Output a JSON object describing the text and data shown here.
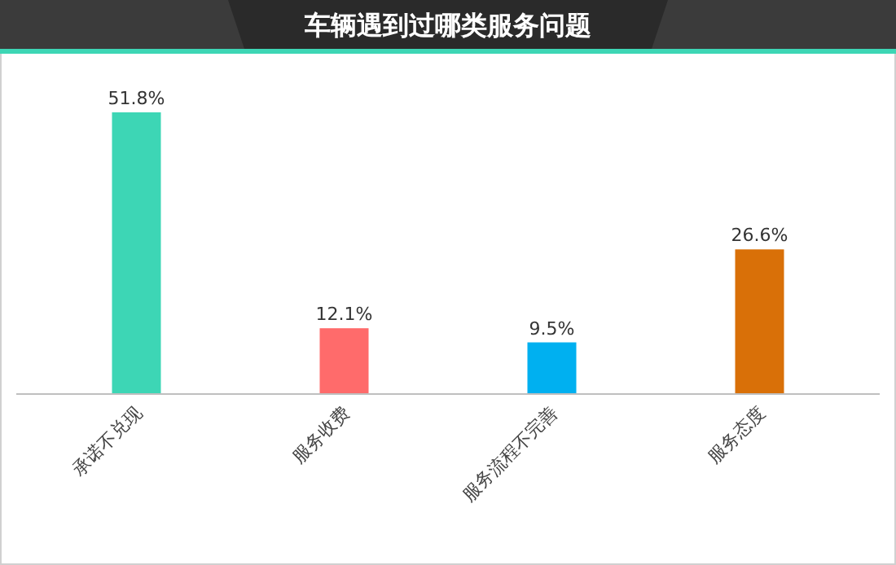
{
  "chart_data": {
    "type": "bar",
    "title": "车辆遇到过哪类服务问题",
    "categories": [
      "承诺不兑现",
      "服务收费",
      "服务流程不完善",
      "服务态度"
    ],
    "values": [
      51.8,
      12.1,
      9.5,
      26.6
    ],
    "colors": [
      "#3dd6b5",
      "#ff6b6b",
      "#00b0f0",
      "#d97008"
    ],
    "value_labels": [
      "51.8%",
      "12.1%",
      "9.5%",
      "26.6%"
    ]
  }
}
